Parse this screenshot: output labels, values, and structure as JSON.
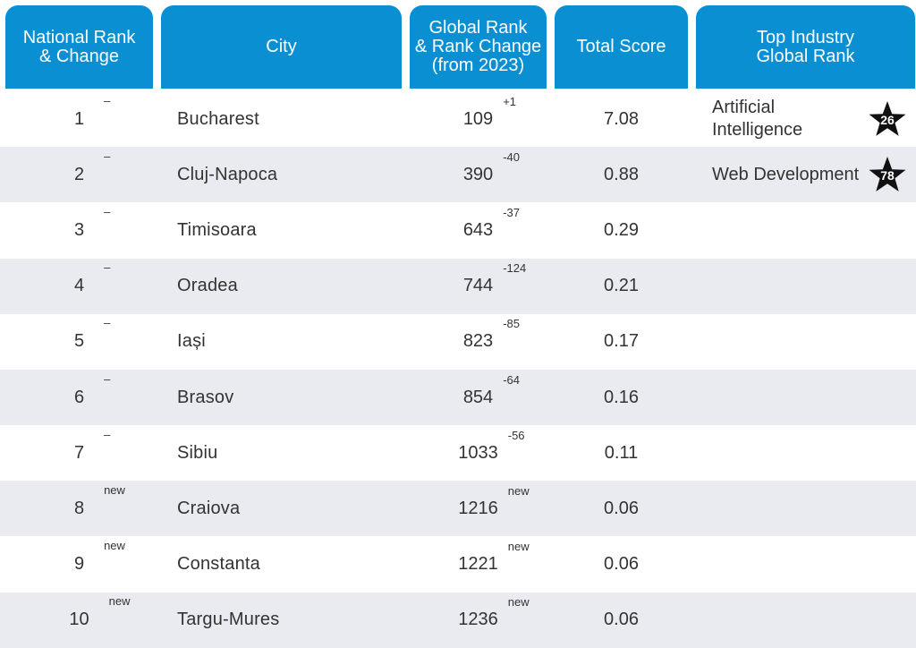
{
  "chart_data": {
    "type": "table",
    "columns": [
      [
        "National Rank",
        "& Change"
      ],
      [
        "City"
      ],
      [
        "Global Rank",
        "& Rank Change",
        "(from 2023)"
      ],
      [
        "Total Score"
      ],
      [
        "Top Industry",
        "Global Rank"
      ]
    ],
    "rows": [
      {
        "national_rank": "1",
        "national_change": "–",
        "city": "Bucharest",
        "global_rank": "109",
        "global_change": "+1",
        "total_score": "7.08",
        "top_industry": "Artificial Intelligence",
        "industry_rank": "26"
      },
      {
        "national_rank": "2",
        "national_change": "–",
        "city": "Cluj-Napoca",
        "global_rank": "390",
        "global_change": "-40",
        "total_score": "0.88",
        "top_industry": "Web Development",
        "industry_rank": "78"
      },
      {
        "national_rank": "3",
        "national_change": "–",
        "city": "Timisoara",
        "global_rank": "643",
        "global_change": "-37",
        "total_score": "0.29",
        "top_industry": "",
        "industry_rank": ""
      },
      {
        "national_rank": "4",
        "national_change": "–",
        "city": "Oradea",
        "global_rank": "744",
        "global_change": "-124",
        "total_score": "0.21",
        "top_industry": "",
        "industry_rank": ""
      },
      {
        "national_rank": "5",
        "national_change": "–",
        "city": "Iași",
        "global_rank": "823",
        "global_change": "-85",
        "total_score": "0.17",
        "top_industry": "",
        "industry_rank": ""
      },
      {
        "national_rank": "6",
        "national_change": "–",
        "city": "Brasov",
        "global_rank": "854",
        "global_change": "-64",
        "total_score": "0.16",
        "top_industry": "",
        "industry_rank": ""
      },
      {
        "national_rank": "7",
        "national_change": "–",
        "city": "Sibiu",
        "global_rank": "1033",
        "global_change": "-56",
        "total_score": "0.11",
        "top_industry": "",
        "industry_rank": ""
      },
      {
        "national_rank": "8",
        "national_change": "new",
        "city": "Craiova",
        "global_rank": "1216",
        "global_change": "new",
        "total_score": "0.06",
        "top_industry": "",
        "industry_rank": ""
      },
      {
        "national_rank": "9",
        "national_change": "new",
        "city": "Constanta",
        "global_rank": "1221",
        "global_change": "new",
        "total_score": "0.06",
        "top_industry": "",
        "industry_rank": ""
      },
      {
        "national_rank": "10",
        "national_change": "new",
        "city": "Targu-Mures",
        "global_rank": "1236",
        "global_change": "new",
        "total_score": "0.06",
        "top_industry": "",
        "industry_rank": ""
      }
    ]
  },
  "colors": {
    "header_bg": "#0b8fd3",
    "header_text": "#ffffff",
    "row_alt_bg": "#e9ebf0",
    "text": "#333333",
    "star": "#111111"
  },
  "icons": {
    "industry_rank_badge": "star-icon"
  }
}
